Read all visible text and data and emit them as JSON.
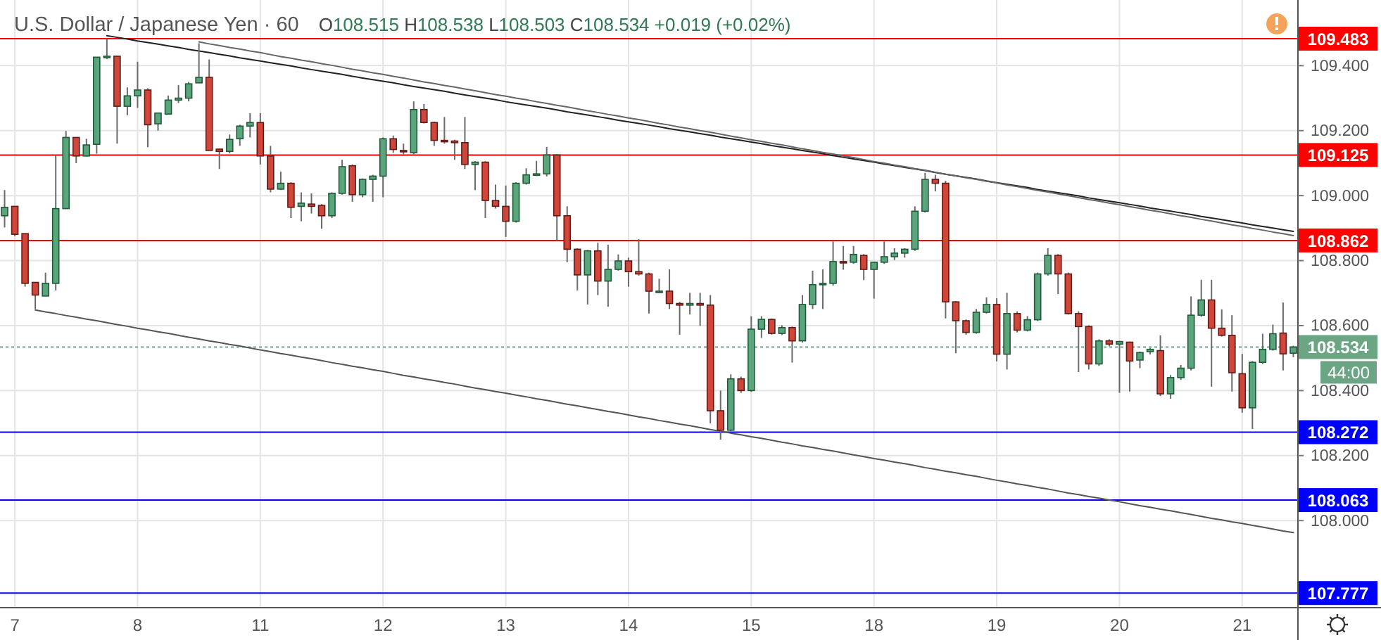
{
  "chart_data": {
    "type": "candlestick",
    "title": "U.S. Dollar / Japanese Yen · 60",
    "subtitle": "O108.515 H108.538 L108.503 C108.534 +0.019 (+0.02%)",
    "categories": [
      null,
      "7",
      null,
      null,
      null,
      null,
      null,
      null,
      null,
      null,
      null,
      null,
      null,
      "8",
      null,
      null,
      null,
      null,
      null,
      null,
      null,
      null,
      null,
      null,
      null,
      "11",
      null,
      null,
      null,
      null,
      null,
      null,
      null,
      null,
      null,
      null,
      null,
      "12",
      null,
      null,
      null,
      null,
      null,
      null,
      null,
      null,
      null,
      null,
      null,
      "13",
      null,
      null,
      null,
      null,
      null,
      null,
      null,
      null,
      null,
      null,
      null,
      "14",
      null,
      null,
      null,
      null,
      null,
      null,
      null,
      null,
      null,
      null,
      null,
      "15",
      null,
      null,
      null,
      null,
      null,
      null,
      null,
      null,
      null,
      null,
      null,
      "18",
      null,
      null,
      null,
      null,
      null,
      null,
      null,
      null,
      null,
      null,
      null,
      "19",
      null,
      null,
      null,
      null,
      null,
      null,
      null,
      null,
      null,
      null,
      null,
      "20",
      null,
      null,
      null,
      null,
      null,
      null,
      null,
      null,
      null,
      null,
      null,
      "21",
      null,
      null,
      null,
      null,
      null
    ],
    "ohlc": [
      [
        108.938,
        109.017,
        108.902,
        108.964
      ],
      [
        108.967,
        108.967,
        108.875,
        108.881
      ],
      [
        108.883,
        108.883,
        108.72,
        108.73
      ],
      [
        108.733,
        108.733,
        108.651,
        108.694
      ],
      [
        108.691,
        108.763,
        108.691,
        108.73
      ],
      [
        108.73,
        109.125,
        108.708,
        108.96
      ],
      [
        108.96,
        109.199,
        108.96,
        109.179
      ],
      [
        109.179,
        109.18,
        109.1,
        109.122
      ],
      [
        109.122,
        109.175,
        109.12,
        109.156
      ],
      [
        109.158,
        109.426,
        109.129,
        109.426
      ],
      [
        109.426,
        109.483,
        109.42,
        109.429
      ],
      [
        109.429,
        109.43,
        109.16,
        109.275
      ],
      [
        109.275,
        109.333,
        109.247,
        109.307
      ],
      [
        109.307,
        109.412,
        109.27,
        109.325
      ],
      [
        109.325,
        109.33,
        109.149,
        109.218
      ],
      [
        109.221,
        109.254,
        109.2,
        109.254
      ],
      [
        109.251,
        109.308,
        109.25,
        109.294
      ],
      [
        109.294,
        109.34,
        109.285,
        109.3
      ],
      [
        109.3,
        109.35,
        109.29,
        109.344
      ],
      [
        109.347,
        109.469,
        109.347,
        109.364
      ],
      [
        109.364,
        109.419,
        109.139,
        109.139
      ],
      [
        109.143,
        109.145,
        109.082,
        109.136
      ],
      [
        109.136,
        109.188,
        109.13,
        109.173
      ],
      [
        109.175,
        109.218,
        109.153,
        109.214
      ],
      [
        109.214,
        109.254,
        109.179,
        109.225
      ],
      [
        109.225,
        109.254,
        109.096,
        109.122
      ],
      [
        109.122,
        109.153,
        109.01,
        109.02
      ],
      [
        109.02,
        109.074,
        109.017,
        109.038
      ],
      [
        109.038,
        109.041,
        108.931,
        108.964
      ],
      [
        108.967,
        109.01,
        108.921,
        108.977
      ],
      [
        108.974,
        109.007,
        108.945,
        108.967
      ],
      [
        108.97,
        108.974,
        108.898,
        108.938
      ],
      [
        108.938,
        109.01,
        108.931,
        109.007
      ],
      [
        109.007,
        109.11,
        109.003,
        109.089
      ],
      [
        109.092,
        109.096,
        108.981,
        109.003
      ],
      [
        109.003,
        109.053,
        108.995,
        109.05
      ],
      [
        109.05,
        109.064,
        108.981,
        109.06
      ],
      [
        109.06,
        109.179,
        108.995,
        109.175
      ],
      [
        109.175,
        109.185,
        109.132,
        109.142
      ],
      [
        109.139,
        109.16,
        109.127,
        109.136
      ],
      [
        109.132,
        109.29,
        109.127,
        109.265
      ],
      [
        109.265,
        109.282,
        109.222,
        109.225
      ],
      [
        109.225,
        109.228,
        109.153,
        109.17
      ],
      [
        109.17,
        109.242,
        109.16,
        109.168
      ],
      [
        109.168,
        109.172,
        109.11,
        109.163
      ],
      [
        109.163,
        109.242,
        109.082,
        109.096
      ],
      [
        109.096,
        109.106,
        109.017,
        109.103
      ],
      [
        109.103,
        109.106,
        108.931,
        108.985
      ],
      [
        108.985,
        109.034,
        108.96,
        108.967
      ],
      [
        108.967,
        109.031,
        108.873,
        108.921
      ],
      [
        108.921,
        109.041,
        108.917,
        109.038
      ],
      [
        109.038,
        109.084,
        109.034,
        109.064
      ],
      [
        109.064,
        109.107,
        109.06,
        109.067
      ],
      [
        109.067,
        109.15,
        109.059,
        109.125
      ],
      [
        109.125,
        109.127,
        108.862,
        108.938
      ],
      [
        108.938,
        108.967,
        108.795,
        108.835
      ],
      [
        108.835,
        108.838,
        108.708,
        108.756
      ],
      [
        108.756,
        108.833,
        108.665,
        108.83
      ],
      [
        108.83,
        108.855,
        108.694,
        108.737
      ],
      [
        108.737,
        108.849,
        108.658,
        108.773
      ],
      [
        108.773,
        108.819,
        108.769,
        108.799
      ],
      [
        108.799,
        108.809,
        108.72,
        108.766
      ],
      [
        108.766,
        108.866,
        108.754,
        108.759
      ],
      [
        108.759,
        108.763,
        108.637,
        108.706
      ],
      [
        108.706,
        108.744,
        108.7,
        108.706
      ],
      [
        108.706,
        108.773,
        108.651,
        108.668
      ],
      [
        108.668,
        108.673,
        108.572,
        108.663
      ],
      [
        108.663,
        108.701,
        108.634,
        108.668
      ],
      [
        108.668,
        108.701,
        108.599,
        108.663
      ],
      [
        108.663,
        108.694,
        108.299,
        108.338
      ],
      [
        108.338,
        108.4,
        108.249,
        108.278
      ],
      [
        108.278,
        108.45,
        108.275,
        108.436
      ],
      [
        108.436,
        108.443,
        108.393,
        108.4
      ],
      [
        108.4,
        108.629,
        108.396,
        108.589
      ],
      [
        108.589,
        108.629,
        108.562,
        108.619
      ],
      [
        108.619,
        108.622,
        108.572,
        108.576
      ],
      [
        108.576,
        108.601,
        108.571,
        108.594
      ],
      [
        108.594,
        108.597,
        108.486,
        108.553
      ],
      [
        108.553,
        108.694,
        108.548,
        108.665
      ],
      [
        108.665,
        108.769,
        108.651,
        108.726
      ],
      [
        108.726,
        108.773,
        108.651,
        108.73
      ],
      [
        108.73,
        108.859,
        108.723,
        108.797
      ],
      [
        108.797,
        108.845,
        108.772,
        108.795
      ],
      [
        108.795,
        108.845,
        108.79,
        108.819
      ],
      [
        108.816,
        108.82,
        108.74,
        108.773
      ],
      [
        108.773,
        108.797,
        108.683,
        108.795
      ],
      [
        108.795,
        108.859,
        108.79,
        108.812
      ],
      [
        108.812,
        108.838,
        108.802,
        108.823
      ],
      [
        108.823,
        108.838,
        108.809,
        108.835
      ],
      [
        108.835,
        108.967,
        108.83,
        108.952
      ],
      [
        108.952,
        109.07,
        108.948,
        109.05
      ],
      [
        109.05,
        109.064,
        109.013,
        109.038
      ],
      [
        109.038,
        109.046,
        108.622,
        108.673
      ],
      [
        108.673,
        108.675,
        108.515,
        108.615
      ],
      [
        108.615,
        108.619,
        108.572,
        108.579
      ],
      [
        108.579,
        108.651,
        108.575,
        108.641
      ],
      [
        108.641,
        108.687,
        108.637,
        108.665
      ],
      [
        108.665,
        108.684,
        108.49,
        108.512
      ],
      [
        108.512,
        108.701,
        108.465,
        108.637
      ],
      [
        108.637,
        108.644,
        108.579,
        108.586
      ],
      [
        108.586,
        108.629,
        108.582,
        108.618
      ],
      [
        108.618,
        108.763,
        108.614,
        108.759
      ],
      [
        108.759,
        108.838,
        108.754,
        108.816
      ],
      [
        108.816,
        108.82,
        108.697,
        108.759
      ],
      [
        108.759,
        108.763,
        108.634,
        108.637
      ],
      [
        108.637,
        108.644,
        108.457,
        108.597
      ],
      [
        108.597,
        108.601,
        108.465,
        108.482
      ],
      [
        108.482,
        108.558,
        108.476,
        108.553
      ],
      [
        108.553,
        108.558,
        108.536,
        108.543
      ],
      [
        108.543,
        108.553,
        108.393,
        108.551
      ],
      [
        108.549,
        108.551,
        108.397,
        108.491
      ],
      [
        108.494,
        108.52,
        108.469,
        108.517
      ],
      [
        108.52,
        108.531,
        108.511,
        108.527
      ],
      [
        108.523,
        108.57,
        108.383,
        108.39
      ],
      [
        108.39,
        108.448,
        108.375,
        108.44
      ],
      [
        108.44,
        108.479,
        108.433,
        108.469
      ],
      [
        108.469,
        108.69,
        108.462,
        108.632
      ],
      [
        108.632,
        108.741,
        108.627,
        108.679
      ],
      [
        108.679,
        108.741,
        108.412,
        108.592
      ],
      [
        108.592,
        108.65,
        108.566,
        108.57
      ],
      [
        108.57,
        108.632,
        108.397,
        108.455
      ],
      [
        108.452,
        108.513,
        108.332,
        108.347
      ],
      [
        108.347,
        108.491,
        108.282,
        108.487
      ],
      [
        108.487,
        108.575,
        108.482,
        108.527
      ],
      [
        108.527,
        108.603,
        108.523,
        108.575
      ],
      [
        108.577,
        108.671,
        108.462,
        108.513
      ],
      [
        108.515,
        108.538,
        108.503,
        108.534
      ]
    ],
    "series": [
      {
        "type": "line",
        "color": "#222222",
        "values": [
          null,
          null,
          null,
          null,
          null,
          null,
          null,
          null,
          null,
          null,
          109.492,
          109.487,
          109.482,
          109.476,
          109.471,
          109.466,
          109.461,
          109.456,
          109.45,
          109.445,
          109.44,
          109.435,
          109.43,
          109.424,
          109.419,
          109.414,
          109.409,
          109.404,
          109.399,
          109.393,
          109.388,
          109.383,
          109.378,
          109.373,
          109.367,
          109.362,
          109.357,
          109.352,
          109.347,
          109.341,
          109.336,
          109.331,
          109.326,
          109.321,
          109.315,
          109.31,
          109.305,
          109.3,
          109.295,
          109.289,
          109.284,
          109.279,
          109.274,
          109.269,
          109.264,
          109.258,
          109.253,
          109.248,
          109.243,
          109.238,
          109.232,
          109.227,
          109.222,
          109.217,
          109.212,
          109.206,
          109.201,
          109.196,
          109.191,
          109.186,
          109.18,
          109.175,
          109.17,
          109.165,
          109.16,
          109.154,
          109.149,
          109.144,
          109.139,
          109.134,
          109.129,
          109.123,
          109.118,
          109.113,
          109.108,
          109.103,
          109.097,
          109.092,
          109.087,
          109.082,
          109.077,
          109.071,
          109.066,
          109.061,
          109.056,
          109.051,
          109.045,
          109.04,
          109.035,
          109.03,
          109.025,
          109.019,
          109.014,
          109.009,
          109.004,
          108.999,
          108.993,
          108.988,
          108.983,
          108.978,
          108.973,
          108.968,
          108.962,
          108.957,
          108.952,
          108.947,
          108.942,
          108.936,
          108.931,
          108.926,
          108.921,
          108.916,
          108.91,
          108.905,
          108.9,
          108.895,
          108.89
        ]
      },
      {
        "type": "line",
        "color": "#666666",
        "values": [
          null,
          null,
          null,
          null,
          null,
          null,
          null,
          null,
          null,
          null,
          null,
          null,
          null,
          null,
          null,
          null,
          null,
          null,
          null,
          109.473,
          109.467,
          109.462,
          109.456,
          109.451,
          109.445,
          109.44,
          109.434,
          109.428,
          109.423,
          109.417,
          109.412,
          109.406,
          109.401,
          109.395,
          109.389,
          109.384,
          109.378,
          109.373,
          109.367,
          109.362,
          109.356,
          109.35,
          109.345,
          109.339,
          109.334,
          109.328,
          109.323,
          109.317,
          109.311,
          109.306,
          109.3,
          109.295,
          109.289,
          109.284,
          109.278,
          109.273,
          109.267,
          109.261,
          109.256,
          109.25,
          109.245,
          109.239,
          109.234,
          109.228,
          109.222,
          109.217,
          109.211,
          109.206,
          109.2,
          109.195,
          109.189,
          109.183,
          109.178,
          109.172,
          109.167,
          109.161,
          109.156,
          109.15,
          109.144,
          109.139,
          109.133,
          109.128,
          109.122,
          109.117,
          109.111,
          109.105,
          109.1,
          109.094,
          109.089,
          109.083,
          109.078,
          109.072,
          109.066,
          109.061,
          109.055,
          109.05,
          109.044,
          109.039,
          109.033,
          109.028,
          109.022,
          109.016,
          109.011,
          109.005,
          109.0,
          108.994,
          108.988,
          108.983,
          108.977,
          108.972,
          108.966,
          108.961,
          108.955,
          108.95,
          108.944,
          108.938,
          108.933,
          108.927,
          108.922,
          108.916,
          108.91,
          108.905,
          108.899,
          108.894,
          108.888,
          108.883,
          108.877
        ]
      },
      {
        "type": "line",
        "color": "#555555",
        "values": [
          null,
          null,
          null,
          108.648,
          108.642,
          108.637,
          108.631,
          108.626,
          108.62,
          108.615,
          108.609,
          108.603,
          108.598,
          108.592,
          108.587,
          108.581,
          108.576,
          108.57,
          108.564,
          108.559,
          108.553,
          108.548,
          108.542,
          108.537,
          108.531,
          108.525,
          108.52,
          108.514,
          108.509,
          108.503,
          108.498,
          108.492,
          108.486,
          108.481,
          108.475,
          108.47,
          108.464,
          108.459,
          108.453,
          108.447,
          108.442,
          108.436,
          108.431,
          108.425,
          108.42,
          108.414,
          108.408,
          108.403,
          108.397,
          108.392,
          108.386,
          108.381,
          108.375,
          108.37,
          108.364,
          108.358,
          108.353,
          108.347,
          108.342,
          108.336,
          108.331,
          108.325,
          108.319,
          108.314,
          108.308,
          108.303,
          108.297,
          108.292,
          108.286,
          108.28,
          108.275,
          108.269,
          108.264,
          108.258,
          108.253,
          108.247,
          108.241,
          108.236,
          108.23,
          108.225,
          108.219,
          108.214,
          108.208,
          108.202,
          108.197,
          108.191,
          108.186,
          108.18,
          108.175,
          108.169,
          108.163,
          108.158,
          108.152,
          108.147,
          108.141,
          108.136,
          108.13,
          108.124,
          108.119,
          108.113,
          108.108,
          108.102,
          108.097,
          108.091,
          108.085,
          108.08,
          108.074,
          108.069,
          108.063,
          108.058,
          108.052,
          108.046,
          108.041,
          108.035,
          108.03,
          108.024,
          108.019,
          108.013,
          108.007,
          108.002,
          107.996,
          107.991,
          107.985,
          107.98,
          107.974,
          107.968,
          107.963
        ]
      }
    ],
    "ylim": [
      107.732,
      109.602
    ],
    "yticks": [
      {
        "value": 108,
        "label": "108.000"
      },
      {
        "value": 108.2,
        "label": "108.200"
      },
      {
        "value": 108.4,
        "label": "108.400"
      },
      {
        "value": 108.6,
        "label": "108.600"
      },
      {
        "value": 108.8,
        "label": "108.800"
      },
      {
        "value": 109,
        "label": "109.000"
      },
      {
        "value": 109.2,
        "label": "109.200"
      },
      {
        "value": 109.4,
        "label": "109.400"
      }
    ],
    "ref_lines": [
      {
        "axis": "y",
        "value": 109.483,
        "label": "109.483",
        "color": "#ff0000"
      },
      {
        "axis": "y",
        "value": 109.125,
        "label": "109.125",
        "color": "#ff0000"
      },
      {
        "axis": "y",
        "value": 108.862,
        "label": "108.862",
        "color": "#ff0000"
      },
      {
        "axis": "y",
        "value": 108.534,
        "label": "108.534",
        "color": "#6ba583",
        "line_style": "dotted"
      },
      {
        "axis": "y",
        "value": 108.272,
        "label": "108.272",
        "color": "#0000ff"
      },
      {
        "axis": "y",
        "value": 108.063,
        "label": "108.063",
        "color": "#0000ff"
      },
      {
        "axis": "y",
        "value": 107.777,
        "label": "107.777",
        "color": "#0000ff"
      }
    ],
    "annotations": [
      "44:00"
    ],
    "grid": true
  }
}
